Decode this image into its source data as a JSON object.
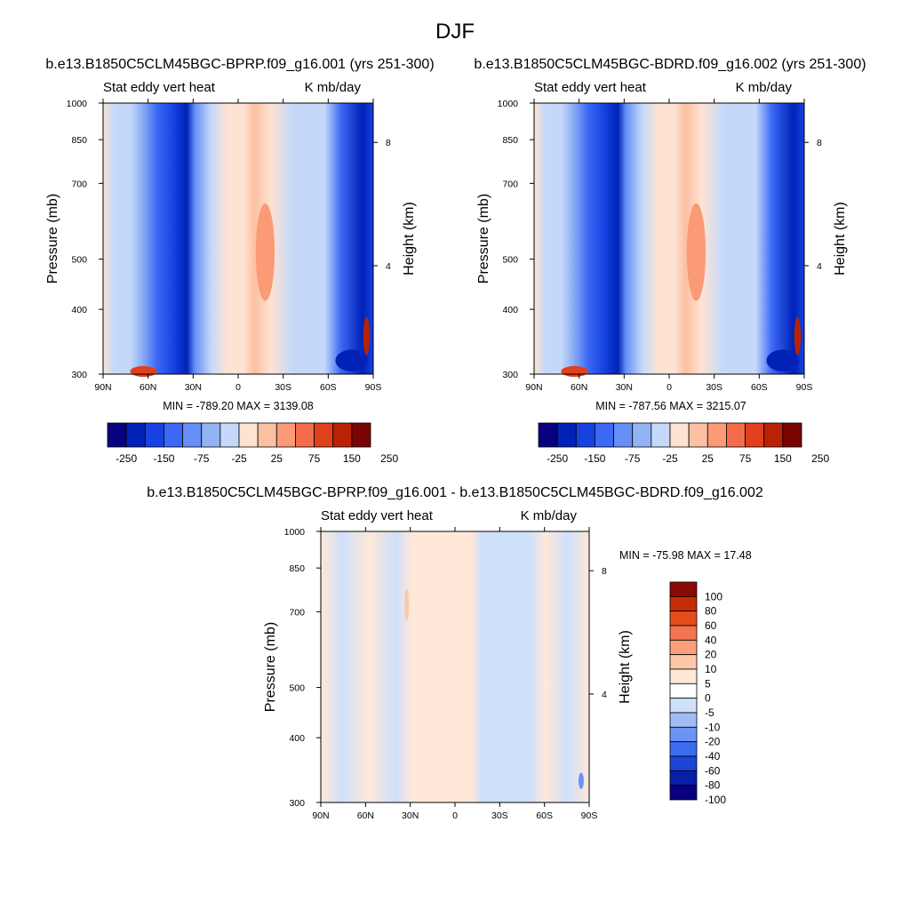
{
  "title": "DJF",
  "colors": {
    "contour_diverging": [
      "#08007f",
      "#0022b6",
      "#1642e2",
      "#3b69f5",
      "#6690f7",
      "#92b3f4",
      "#c4d9fa",
      "#ffe3d2",
      "#fcc0a2",
      "#fb9a77",
      "#f46c4a",
      "#e0401c",
      "#b92205",
      "#7a0403"
    ],
    "diff_fills": [
      "#08007f",
      "#0a1fa8",
      "#1d44d6",
      "#3b6cf0",
      "#6d94f5",
      "#a0bcf6",
      "#cfe0fb",
      "#ffffff",
      "#ffe8d8",
      "#fcc7a9",
      "#fb9f7b",
      "#f47351",
      "#e64c1c",
      "#c52c06",
      "#8a0a05"
    ]
  },
  "chart_data": [
    {
      "type": "heatmap",
      "name": "case1",
      "title": "b.e13.B1850C5CLM45BGC-BPRP.f09_g16.001 (yrs 251-300)",
      "left_label": "Stat eddy vert heat",
      "right_label": "K mb/day",
      "ylabel": "Pressure (mb)",
      "ylabel_right": "Height (km)",
      "x_ticks": [
        "90N",
        "60N",
        "30N",
        "0",
        "30S",
        "60S",
        "90S"
      ],
      "y_ticks": [
        "300",
        "400",
        "500",
        "700",
        "850",
        "1000"
      ],
      "y_ticks_right": [
        "8",
        "4"
      ],
      "stats": "MIN = -789.20  MAX = 3139.08",
      "colorbar_labels": [
        "-250",
        "-150",
        "-75",
        "-25",
        "25",
        "75",
        "150",
        "250"
      ]
    },
    {
      "type": "heatmap",
      "name": "case2",
      "title": "b.e13.B1850C5CLM45BGC-BDRD.f09_g16.002 (yrs 251-300)",
      "left_label": "Stat eddy vert heat",
      "right_label": "K mb/day",
      "ylabel": "Pressure (mb)",
      "ylabel_right": "Height (km)",
      "x_ticks": [
        "90N",
        "60N",
        "30N",
        "0",
        "30S",
        "60S",
        "90S"
      ],
      "y_ticks": [
        "300",
        "400",
        "500",
        "700",
        "850",
        "1000"
      ],
      "y_ticks_right": [
        "8",
        "4"
      ],
      "stats": "MIN = -787.56  MAX = 3215.07",
      "colorbar_labels": [
        "-250",
        "-150",
        "-75",
        "-25",
        "25",
        "75",
        "150",
        "250"
      ]
    },
    {
      "type": "heatmap",
      "name": "difference",
      "title": "b.e13.B1850C5CLM45BGC-BPRP.f09_g16.001 - b.e13.B1850C5CLM45BGC-BDRD.f09_g16.002",
      "left_label": "Stat eddy vert heat",
      "right_label": "K mb/day",
      "ylabel": "Pressure (mb)",
      "ylabel_right": "Height (km)",
      "x_ticks": [
        "90N",
        "60N",
        "30N",
        "0",
        "30S",
        "60S",
        "90S"
      ],
      "y_ticks": [
        "300",
        "400",
        "500",
        "700",
        "850",
        "1000"
      ],
      "y_ticks_right": [
        "8",
        "4"
      ],
      "stats": "MIN = -75.98  MAX =  17.48",
      "colorbar_labels": [
        "100",
        "80",
        "60",
        "40",
        "20",
        "10",
        "5",
        "0",
        "-5",
        "-10",
        "-20",
        "-40",
        "-60",
        "-80",
        "-100"
      ]
    }
  ]
}
